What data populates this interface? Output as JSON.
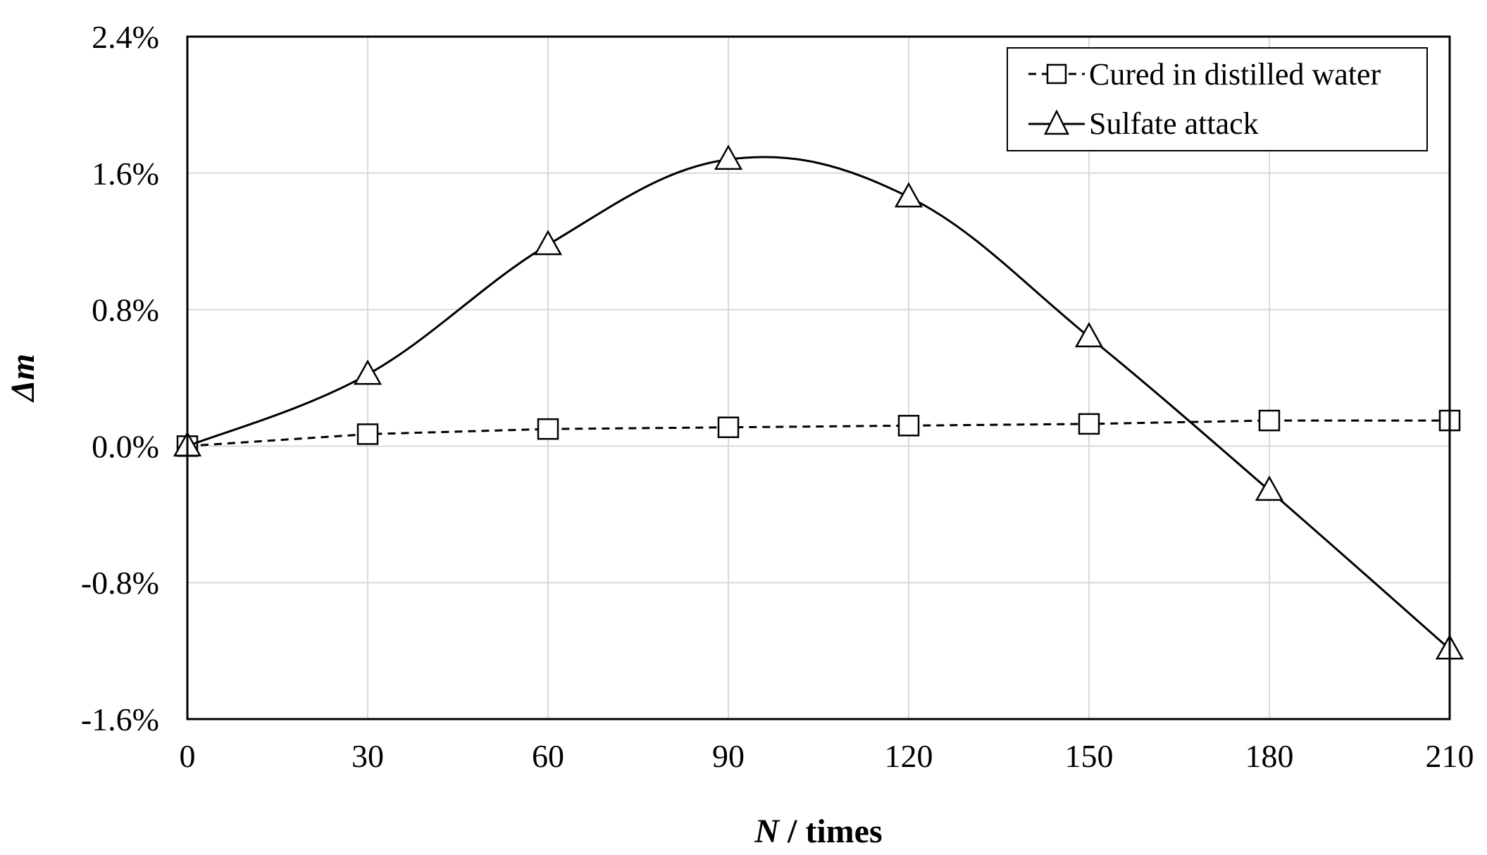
{
  "chart_data": {
    "type": "line",
    "title": "",
    "xlabel": {
      "italic_part": "N",
      "rest": " / times"
    },
    "ylabel": "Δm",
    "x": [
      0,
      30,
      60,
      90,
      120,
      150,
      180,
      210
    ],
    "x_tick_labels": [
      "0",
      "30",
      "60",
      "90",
      "120",
      "150",
      "180",
      "210"
    ],
    "xlim": [
      0,
      210
    ],
    "y_ticks": [
      2.4,
      1.6,
      0.8,
      0.0,
      -0.8,
      -1.6
    ],
    "y_tick_labels": [
      "2.4%",
      "1.6%",
      "0.8%",
      "0.0%",
      "-0.8%",
      "-1.6%"
    ],
    "ylim": [
      -1.6,
      2.4
    ],
    "y_unit": "%",
    "grid": true,
    "legend_position": "top-right",
    "series": [
      {
        "name": "Cured in distilled water",
        "marker": "square",
        "line_style": "dashed",
        "smooth": false,
        "values": [
          0.0,
          0.07,
          0.1,
          0.11,
          0.12,
          0.13,
          0.15,
          0.15
        ]
      },
      {
        "name": "Sulfate attack",
        "marker": "triangle",
        "line_style": "solid",
        "smooth": true,
        "values": [
          0.0,
          0.42,
          1.18,
          1.68,
          1.46,
          0.64,
          -0.26,
          -1.19
        ]
      }
    ],
    "colors": {
      "line": "#000000",
      "grid": "#d9d9d9",
      "frame": "#000000",
      "background": "#ffffff"
    }
  }
}
